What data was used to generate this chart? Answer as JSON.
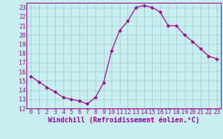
{
  "x": [
    0,
    1,
    2,
    3,
    4,
    5,
    6,
    7,
    8,
    9,
    10,
    11,
    12,
    13,
    14,
    15,
    16,
    17,
    18,
    19,
    20,
    21,
    22,
    23
  ],
  "y": [
    15.5,
    14.9,
    14.3,
    13.8,
    13.2,
    13.0,
    12.8,
    12.5,
    13.2,
    14.8,
    18.3,
    20.5,
    21.5,
    23.0,
    23.2,
    23.0,
    22.5,
    21.0,
    21.0,
    20.0,
    19.3,
    18.5,
    17.7,
    17.4
  ],
  "line_color": "#990099",
  "marker": "D",
  "marker_size": 2.5,
  "line_width": 0.9,
  "xlim": [
    -0.5,
    23.5
  ],
  "ylim": [
    12,
    23.5
  ],
  "yticks": [
    12,
    13,
    14,
    15,
    16,
    17,
    18,
    19,
    20,
    21,
    22,
    23
  ],
  "xticks": [
    0,
    1,
    2,
    3,
    4,
    5,
    6,
    7,
    8,
    9,
    10,
    11,
    12,
    13,
    14,
    15,
    16,
    17,
    18,
    19,
    20,
    21,
    22,
    23
  ],
  "xlabel": "Windchill (Refroidissement éolien,°C)",
  "xlabel_fontsize": 7,
  "tick_fontsize": 6,
  "background_color": "#c8eef0",
  "grid_color": "#99cccc",
  "spine_color": "#990099",
  "label_color": "#990099"
}
